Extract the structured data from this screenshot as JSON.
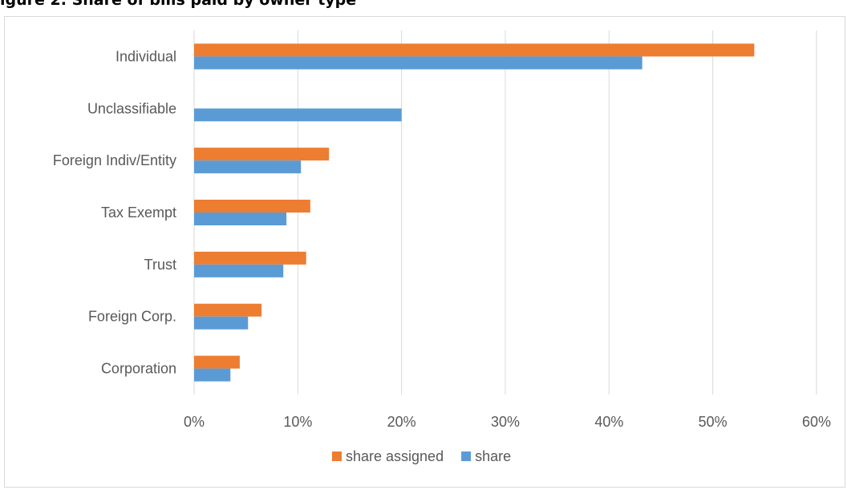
{
  "figure": {
    "title_visible": "igure 2. Share of bills paid by owner type"
  },
  "chart_data": {
    "type": "bar",
    "orientation": "horizontal",
    "title": "",
    "xlabel": "",
    "ylabel": "",
    "categories": [
      "Individual",
      "Unclassifiable",
      "Foreign Indiv/Entity",
      "Tax Exempt",
      "Trust",
      "Foreign Corp.",
      "Corporation"
    ],
    "series": [
      {
        "name": "share assigned",
        "color": "#ed7d31",
        "values": [
          54.0,
          null,
          13.0,
          11.2,
          10.8,
          6.5,
          4.4
        ]
      },
      {
        "name": "share",
        "color": "#5b9bd5",
        "values": [
          43.2,
          20.0,
          10.3,
          8.9,
          8.6,
          5.2,
          3.5
        ]
      }
    ],
    "xlim": [
      0,
      60
    ],
    "xticks": [
      "0%",
      "10%",
      "20%",
      "30%",
      "40%",
      "50%",
      "60%"
    ],
    "grid": true,
    "legend_position": "bottom"
  }
}
